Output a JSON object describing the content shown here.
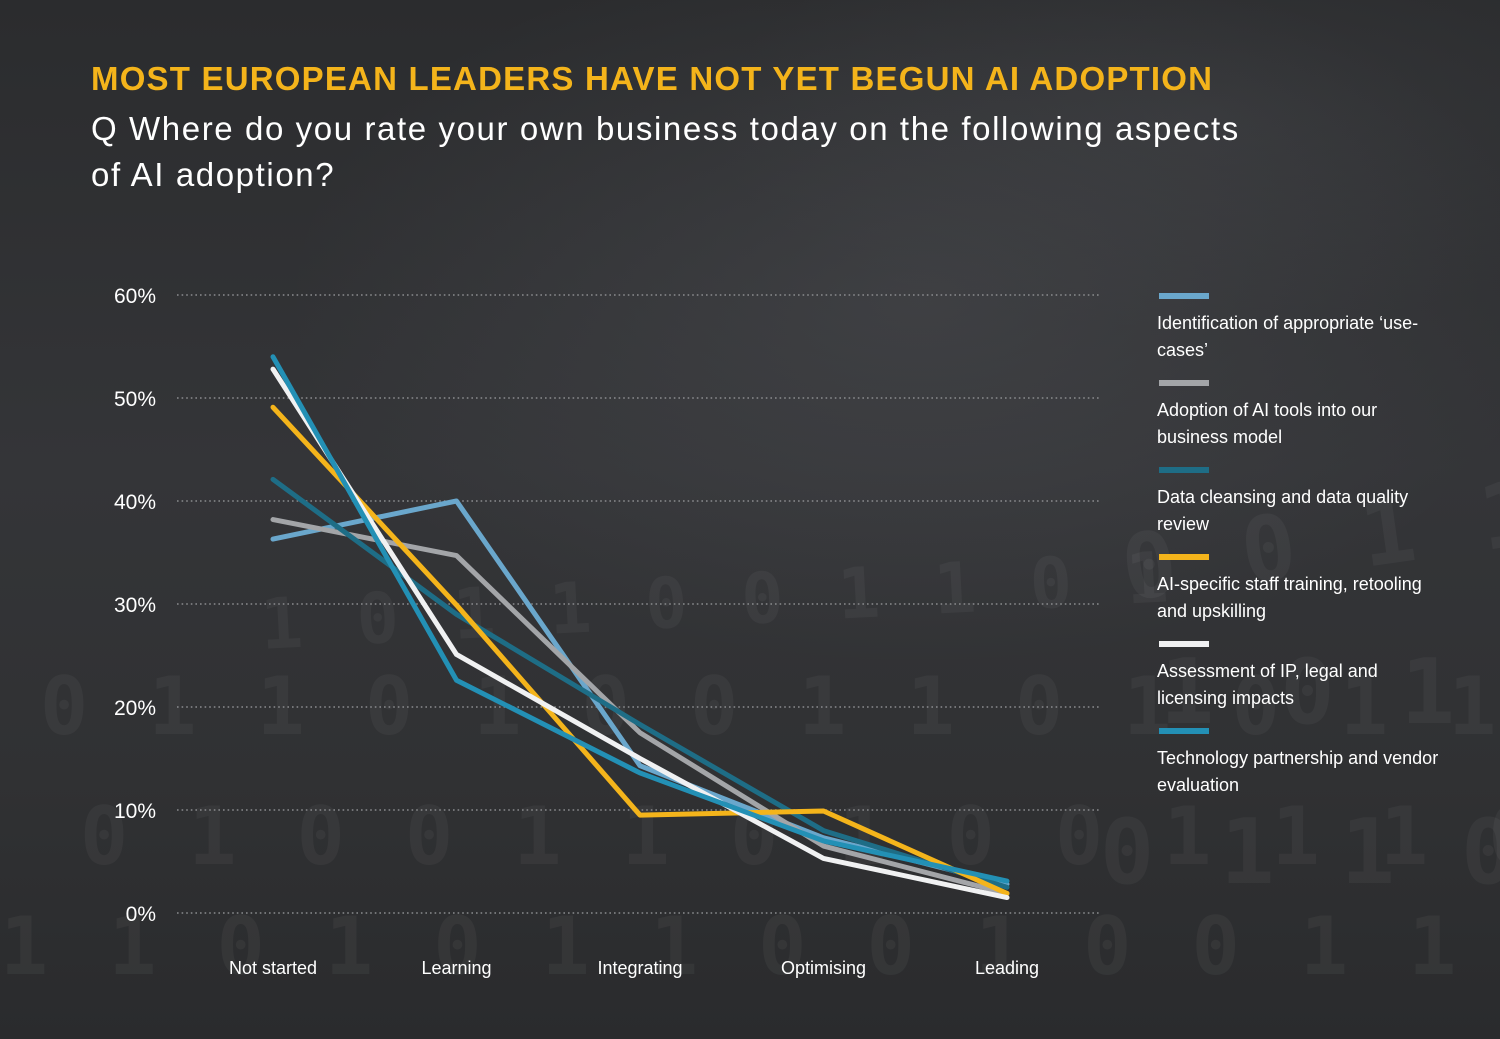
{
  "title": "MOST EUROPEAN LEADERS HAVE NOT YET BEGUN AI ADOPTION",
  "subtitle": "Q Where do you rate your own business today on the following aspects of AI adoption?",
  "colors": {
    "title": "#f4b41b",
    "background": "#2f3032",
    "grid": "#8a8b8e"
  },
  "chart_data": {
    "type": "line",
    "title": "MOST EUROPEAN LEADERS HAVE NOT YET BEGUN AI ADOPTION",
    "xlabel": "",
    "ylabel": "",
    "categories": [
      "Not started",
      "Learning",
      "Integrating",
      "Optimising",
      "Leading"
    ],
    "ylim": [
      0,
      60
    ],
    "yticks": [
      0,
      10,
      20,
      30,
      40,
      50,
      60
    ],
    "ytick_labels": [
      "0%",
      "10%",
      "20%",
      "30%",
      "40%",
      "50%",
      "60%"
    ],
    "grid": "horizontal dotted",
    "legend_position": "right",
    "series": [
      {
        "name": "Identification of appropriate ‘use-cases’",
        "color": "#6aa7cc",
        "values": [
          36.3,
          40.0,
          14.3,
          7.3,
          2.8
        ]
      },
      {
        "name": "Adoption of AI tools into our business model",
        "color": "#a3a5a8",
        "values": [
          38.2,
          34.7,
          17.5,
          6.5,
          1.9
        ]
      },
      {
        "name": "Data cleansing and data quality review",
        "color": "#1e6d86",
        "values": [
          42.1,
          29.0,
          18.3,
          8.0,
          2.5
        ]
      },
      {
        "name": "AI-specific staff training, retooling and upskilling",
        "color": "#f4b41b",
        "values": [
          49.1,
          29.9,
          9.5,
          9.9,
          1.9
        ]
      },
      {
        "name": "Assessment of IP, legal and licensing impacts",
        "color": "#f0f1f2",
        "values": [
          52.8,
          25.1,
          15.0,
          5.3,
          1.5
        ]
      },
      {
        "name": "Technology partnership and vendor evaluation",
        "color": "#2390b5",
        "values": [
          54.0,
          22.6,
          13.6,
          7.0,
          3.1
        ]
      }
    ]
  }
}
